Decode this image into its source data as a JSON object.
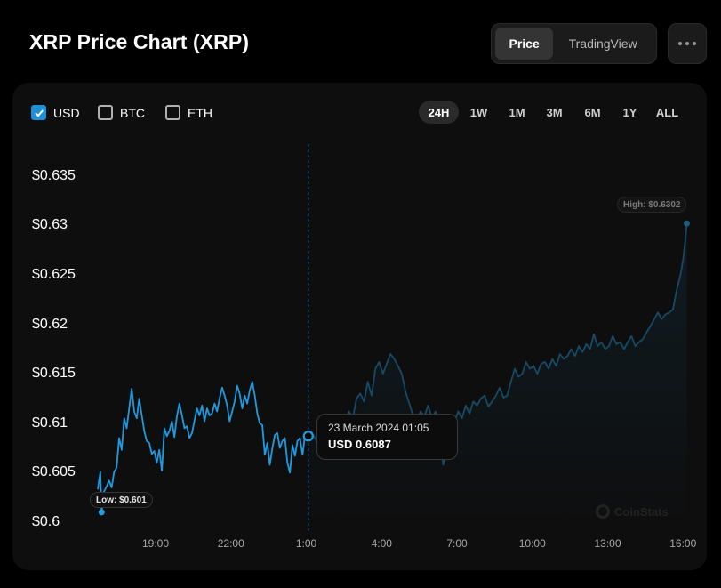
{
  "header": {
    "title": "XRP Price Chart (XRP)",
    "view_tabs": [
      {
        "label": "Price",
        "active": true
      },
      {
        "label": "TradingView",
        "active": false
      }
    ],
    "more_icon": "ellipsis-icon"
  },
  "currencies": [
    {
      "label": "USD",
      "checked": true
    },
    {
      "label": "BTC",
      "checked": false
    },
    {
      "label": "ETH",
      "checked": false
    }
  ],
  "ranges": [
    {
      "label": "24H",
      "active": true
    },
    {
      "label": "1W",
      "active": false
    },
    {
      "label": "1M",
      "active": false
    },
    {
      "label": "3M",
      "active": false
    },
    {
      "label": "6M",
      "active": false
    },
    {
      "label": "1Y",
      "active": false
    },
    {
      "label": "ALL",
      "active": false
    }
  ],
  "tooltip": {
    "date": "23 March 2024 01:05",
    "value": "USD 0.6087"
  },
  "low_label": "Low: $0.601",
  "high_label": "High: $0.6302",
  "watermark": "CoinStats",
  "colors": {
    "accent": "#1e9be0",
    "dim_line": "#164a66",
    "background": "#000000",
    "card": "#0e0e0e"
  },
  "chart_data": {
    "type": "line",
    "y_ticks": [
      "$0.635",
      "$0.63",
      "$0.625",
      "$0.62",
      "$0.615",
      "$0.61",
      "$0.605",
      "$0.6"
    ],
    "y_tick_values": [
      0.635,
      0.63,
      0.625,
      0.62,
      0.615,
      0.61,
      0.605,
      0.6
    ],
    "x_ticks": [
      "19:00",
      "22:00",
      "1:00",
      "4:00",
      "7:00",
      "10:00",
      "13:00",
      "16:00"
    ],
    "x_tick_hours": [
      19,
      22,
      25,
      28,
      31,
      34,
      37,
      40
    ],
    "ylim": [
      0.6,
      0.635
    ],
    "xlim_hours": [
      16.7,
      40.2
    ],
    "grid": false,
    "hover_hour": 25.08,
    "low": {
      "hour": 16.85,
      "value": 0.601
    },
    "high": {
      "hour": 40.15,
      "value": 0.6302
    },
    "series": [
      {
        "values": [
          [
            16.7,
            0.6033
          ],
          [
            16.8,
            0.6051
          ],
          [
            16.85,
            0.601
          ],
          [
            16.95,
            0.6031
          ],
          [
            17.05,
            0.6036
          ],
          [
            17.15,
            0.6042
          ],
          [
            17.25,
            0.6035
          ],
          [
            17.35,
            0.6051
          ],
          [
            17.45,
            0.6055
          ],
          [
            17.55,
            0.6085
          ],
          [
            17.65,
            0.6073
          ],
          [
            17.75,
            0.6105
          ],
          [
            17.85,
            0.6095
          ],
          [
            17.95,
            0.6115
          ],
          [
            18.05,
            0.6135
          ],
          [
            18.15,
            0.6112
          ],
          [
            18.25,
            0.6105
          ],
          [
            18.35,
            0.6125
          ],
          [
            18.45,
            0.6108
          ],
          [
            18.55,
            0.6092
          ],
          [
            18.65,
            0.6082
          ],
          [
            18.75,
            0.608
          ],
          [
            18.85,
            0.6069
          ],
          [
            18.95,
            0.6072
          ],
          [
            19.05,
            0.606
          ],
          [
            19.15,
            0.6073
          ],
          [
            19.25,
            0.6052
          ],
          [
            19.35,
            0.6095
          ],
          [
            19.45,
            0.6087
          ],
          [
            19.55,
            0.6092
          ],
          [
            19.65,
            0.6102
          ],
          [
            19.75,
            0.6086
          ],
          [
            19.85,
            0.6107
          ],
          [
            19.95,
            0.612
          ],
          [
            20.05,
            0.6108
          ],
          [
            20.15,
            0.6095
          ],
          [
            20.25,
            0.6097
          ],
          [
            20.35,
            0.6085
          ],
          [
            20.45,
            0.609
          ],
          [
            20.55,
            0.6103
          ],
          [
            20.65,
            0.6115
          ],
          [
            20.75,
            0.6108
          ],
          [
            20.85,
            0.6118
          ],
          [
            20.95,
            0.6102
          ],
          [
            21.05,
            0.6115
          ],
          [
            21.15,
            0.6108
          ],
          [
            21.25,
            0.611
          ],
          [
            21.35,
            0.612
          ],
          [
            21.45,
            0.6112
          ],
          [
            21.55,
            0.6125
          ],
          [
            21.65,
            0.6136
          ],
          [
            21.75,
            0.6128
          ],
          [
            21.85,
            0.6118
          ],
          [
            21.95,
            0.6102
          ],
          [
            22.05,
            0.6112
          ],
          [
            22.15,
            0.6122
          ],
          [
            22.25,
            0.6138
          ],
          [
            22.35,
            0.613
          ],
          [
            22.45,
            0.6115
          ],
          [
            22.55,
            0.6128
          ],
          [
            22.65,
            0.612
          ],
          [
            22.75,
            0.6133
          ],
          [
            22.85,
            0.6142
          ],
          [
            22.95,
            0.6128
          ],
          [
            23.05,
            0.611
          ],
          [
            23.15,
            0.61
          ],
          [
            23.25,
            0.6098
          ],
          [
            23.35,
            0.6068
          ],
          [
            23.45,
            0.608
          ],
          [
            23.55,
            0.6058
          ],
          [
            23.65,
            0.6075
          ],
          [
            23.75,
            0.6088
          ],
          [
            23.85,
            0.609
          ],
          [
            23.95,
            0.6075
          ],
          [
            24.05,
            0.6082
          ],
          [
            24.15,
            0.6085
          ],
          [
            24.25,
            0.606
          ],
          [
            24.35,
            0.605
          ],
          [
            24.45,
            0.6078
          ],
          [
            24.55,
            0.6067
          ],
          [
            24.65,
            0.6082
          ],
          [
            24.75,
            0.6085
          ],
          [
            24.85,
            0.6068
          ],
          [
            24.95,
            0.6088
          ],
          [
            25.08,
            0.6087
          ],
          [
            25.2,
            0.6092
          ],
          [
            25.35,
            0.6085
          ],
          [
            25.5,
            0.6078
          ],
          [
            25.65,
            0.6088
          ],
          [
            25.8,
            0.6092
          ],
          [
            25.95,
            0.6086
          ],
          [
            26.1,
            0.6095
          ],
          [
            26.25,
            0.6089
          ],
          [
            26.4,
            0.6105
          ],
          [
            26.55,
            0.6096
          ],
          [
            26.7,
            0.6112
          ],
          [
            26.85,
            0.6105
          ],
          [
            27.0,
            0.6125
          ],
          [
            27.15,
            0.613
          ],
          [
            27.3,
            0.6122
          ],
          [
            27.45,
            0.6142
          ],
          [
            27.6,
            0.6128
          ],
          [
            27.75,
            0.6155
          ],
          [
            27.9,
            0.6162
          ],
          [
            28.05,
            0.615
          ],
          [
            28.2,
            0.616
          ],
          [
            28.35,
            0.617
          ],
          [
            28.5,
            0.6165
          ],
          [
            28.65,
            0.6158
          ],
          [
            28.8,
            0.615
          ],
          [
            28.95,
            0.6132
          ],
          [
            29.1,
            0.612
          ],
          [
            29.25,
            0.6108
          ],
          [
            29.4,
            0.6102
          ],
          [
            29.55,
            0.6112
          ],
          [
            29.7,
            0.6107
          ],
          [
            29.85,
            0.6118
          ],
          [
            30.0,
            0.6105
          ],
          [
            30.15,
            0.6112
          ],
          [
            30.3,
            0.6092
          ],
          [
            30.45,
            0.6058
          ],
          [
            30.6,
            0.607
          ],
          [
            30.75,
            0.6095
          ],
          [
            30.9,
            0.6102
          ],
          [
            31.05,
            0.6112
          ],
          [
            31.2,
            0.6105
          ],
          [
            31.35,
            0.6118
          ],
          [
            31.5,
            0.611
          ],
          [
            31.65,
            0.6122
          ],
          [
            31.8,
            0.6118
          ],
          [
            31.95,
            0.6125
          ],
          [
            32.1,
            0.6128
          ],
          [
            32.25,
            0.6117
          ],
          [
            32.4,
            0.6122
          ],
          [
            32.55,
            0.6128
          ],
          [
            32.7,
            0.6136
          ],
          [
            32.85,
            0.6126
          ],
          [
            33.0,
            0.6128
          ],
          [
            33.15,
            0.6142
          ],
          [
            33.3,
            0.6155
          ],
          [
            33.45,
            0.6147
          ],
          [
            33.6,
            0.615
          ],
          [
            33.75,
            0.6162
          ],
          [
            33.9,
            0.6155
          ],
          [
            34.05,
            0.6158
          ],
          [
            34.2,
            0.615
          ],
          [
            34.35,
            0.616
          ],
          [
            34.5,
            0.6162
          ],
          [
            34.65,
            0.6155
          ],
          [
            34.8,
            0.6165
          ],
          [
            34.95,
            0.6158
          ],
          [
            35.1,
            0.617
          ],
          [
            35.25,
            0.6165
          ],
          [
            35.4,
            0.6168
          ],
          [
            35.55,
            0.6175
          ],
          [
            35.7,
            0.6168
          ],
          [
            35.85,
            0.6178
          ],
          [
            36.0,
            0.6172
          ],
          [
            36.15,
            0.618
          ],
          [
            36.3,
            0.6175
          ],
          [
            36.45,
            0.619
          ],
          [
            36.6,
            0.6178
          ],
          [
            36.75,
            0.6182
          ],
          [
            36.9,
            0.6175
          ],
          [
            37.05,
            0.6178
          ],
          [
            37.2,
            0.6188
          ],
          [
            37.35,
            0.618
          ],
          [
            37.5,
            0.6182
          ],
          [
            37.65,
            0.6175
          ],
          [
            37.8,
            0.6182
          ],
          [
            37.95,
            0.6188
          ],
          [
            38.1,
            0.6178
          ],
          [
            38.25,
            0.6182
          ],
          [
            38.4,
            0.6185
          ],
          [
            38.55,
            0.6192
          ],
          [
            38.7,
            0.6198
          ],
          [
            38.85,
            0.6205
          ],
          [
            39.0,
            0.6212
          ],
          [
            39.15,
            0.6205
          ],
          [
            39.3,
            0.621
          ],
          [
            39.45,
            0.6212
          ],
          [
            39.6,
            0.6215
          ],
          [
            39.75,
            0.6235
          ],
          [
            39.9,
            0.625
          ],
          [
            40.0,
            0.6265
          ],
          [
            40.08,
            0.6282
          ],
          [
            40.15,
            0.6302
          ]
        ]
      }
    ]
  }
}
